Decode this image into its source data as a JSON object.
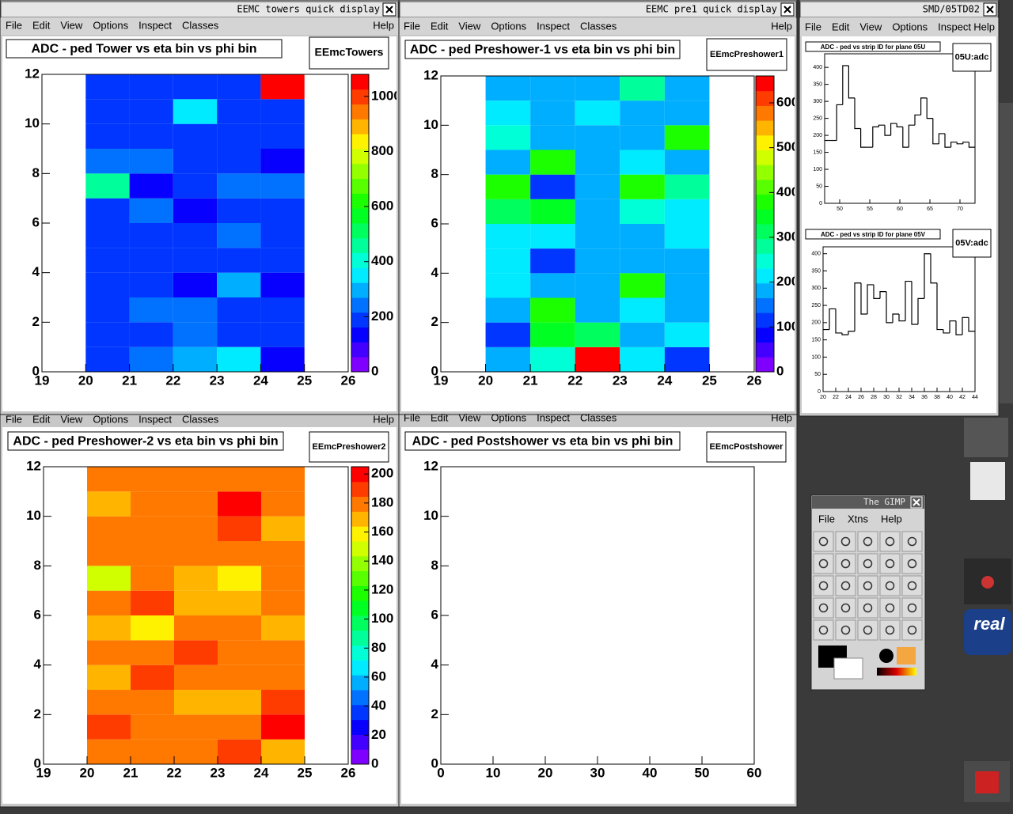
{
  "windows": [
    {
      "title": "EEMC towers quick display",
      "menu": [
        "File",
        "Edit",
        "View",
        "Options",
        "Inspect",
        "Classes",
        "Help"
      ]
    },
    {
      "title": "EEMC pre1 quick display",
      "menu": [
        "File",
        "Edit",
        "View",
        "Options",
        "Inspect",
        "Classes",
        "Help"
      ]
    },
    {
      "title": "SMD/05TD02",
      "menu": [
        "File",
        "Edit",
        "View",
        "Options",
        "Inspect",
        "Help"
      ]
    },
    {
      "menu": [
        "File",
        "Edit",
        "View",
        "Options",
        "Inspect",
        "Classes",
        "Help"
      ]
    },
    {
      "menu": [
        "File",
        "Edit",
        "View",
        "Options",
        "Inspect",
        "Classes",
        "Help"
      ]
    }
  ],
  "gimp": {
    "title": "The GIMP",
    "menu": [
      "File",
      "Xtns",
      "Help"
    ]
  },
  "desktop": {
    "logo": "real"
  },
  "chart_data": [
    {
      "type": "heatmap",
      "title": "ADC - ped Tower vs eta bin vs phi bin",
      "label": "EEmcTowers",
      "xbins": [
        20,
        21,
        22,
        23,
        24,
        25
      ],
      "ybins": [
        0,
        1,
        2,
        3,
        4,
        5,
        6,
        7,
        8,
        9,
        10,
        11,
        12
      ],
      "z": [
        [
          180,
          240,
          270,
          360,
          140
        ],
        [
          180,
          180,
          240,
          180,
          180
        ],
        [
          180,
          240,
          240,
          180,
          180
        ],
        [
          180,
          180,
          140,
          300,
          140
        ],
        [
          180,
          180,
          180,
          180,
          180
        ],
        [
          180,
          180,
          180,
          240,
          180
        ],
        [
          180,
          240,
          140,
          180,
          180
        ],
        [
          475,
          140,
          180,
          240,
          240
        ],
        [
          240,
          240,
          180,
          180,
          140
        ],
        [
          180,
          180,
          180,
          180,
          180
        ],
        [
          180,
          180,
          360,
          180,
          180
        ],
        [
          180,
          180,
          180,
          180,
          1050
        ]
      ],
      "xlim": [
        19,
        26
      ],
      "xticks": [
        19,
        20,
        21,
        22,
        23,
        24,
        25,
        26
      ],
      "ylim": [
        0,
        12
      ],
      "yticks": [
        0,
        2,
        4,
        6,
        8,
        10,
        12
      ],
      "zlim": [
        0,
        1080
      ],
      "zticks": [
        0,
        200,
        400,
        600,
        800,
        1000
      ]
    },
    {
      "type": "heatmap",
      "title": "ADC - ped Preshower-1 vs eta bin vs phi bin",
      "label": "EEmcPreshower1",
      "xbins": [
        20,
        21,
        22,
        23,
        24,
        25
      ],
      "ybins": [
        0,
        1,
        2,
        3,
        4,
        5,
        6,
        7,
        8,
        9,
        10,
        11,
        12
      ],
      "z": [
        [
          170,
          260,
          650,
          220,
          130
        ],
        [
          130,
          330,
          310,
          170,
          220
        ],
        [
          170,
          370,
          170,
          220,
          170
        ],
        [
          220,
          170,
          170,
          370,
          170
        ],
        [
          220,
          130,
          170,
          170,
          170
        ],
        [
          220,
          220,
          170,
          170,
          220
        ],
        [
          310,
          330,
          170,
          260,
          220
        ],
        [
          370,
          130,
          170,
          370,
          290
        ],
        [
          170,
          370,
          170,
          220,
          170
        ],
        [
          260,
          170,
          170,
          170,
          370
        ],
        [
          220,
          170,
          220,
          170,
          170
        ],
        [
          170,
          170,
          170,
          290,
          170
        ]
      ],
      "xlim": [
        19,
        26
      ],
      "xticks": [
        19,
        20,
        21,
        22,
        23,
        24,
        25,
        26
      ],
      "ylim": [
        0,
        12
      ],
      "yticks": [
        0,
        2,
        4,
        6,
        8,
        10,
        12
      ],
      "zlim": [
        0,
        660
      ],
      "zticks": [
        0,
        100,
        200,
        300,
        400,
        500,
        600
      ]
    },
    {
      "type": "heatmap",
      "title": "ADC - ped Preshower-2 vs eta bin vs phi bin",
      "label": "EEmcPreshower2",
      "xbins": [
        20,
        21,
        22,
        23,
        24,
        25
      ],
      "ybins": [
        0,
        1,
        2,
        3,
        4,
        5,
        6,
        7,
        8,
        9,
        10,
        11,
        12
      ],
      "z": [
        [
          175,
          182,
          182,
          193,
          164
        ],
        [
          193,
          182,
          182,
          175,
          196
        ],
        [
          182,
          182,
          164,
          164,
          193
        ],
        [
          164,
          193,
          175,
          175,
          182
        ],
        [
          175,
          175,
          193,
          175,
          182
        ],
        [
          164,
          155,
          182,
          182,
          164
        ],
        [
          182,
          193,
          164,
          164,
          175
        ],
        [
          152,
          182,
          164,
          155,
          182
        ],
        [
          175,
          175,
          175,
          182,
          182
        ],
        [
          182,
          175,
          175,
          193,
          164
        ],
        [
          164,
          175,
          175,
          196,
          175
        ],
        [
          175,
          182,
          175,
          182,
          182
        ]
      ],
      "xlim": [
        19,
        26
      ],
      "xticks": [
        19,
        20,
        21,
        22,
        23,
        24,
        25,
        26
      ],
      "ylim": [
        0,
        12
      ],
      "yticks": [
        0,
        2,
        4,
        6,
        8,
        10,
        12
      ],
      "zlim": [
        0,
        205
      ],
      "zticks": [
        0,
        20,
        40,
        60,
        80,
        100,
        120,
        140,
        160,
        180,
        200
      ]
    },
    {
      "type": "heatmap",
      "title": "ADC - ped Postshower vs eta bin vs phi bin",
      "label": "EEmcPostshower",
      "xlim": [
        0,
        60
      ],
      "xticks": [
        0,
        10,
        20,
        30,
        40,
        50,
        60
      ],
      "ylim": [
        0,
        12
      ],
      "yticks": [
        0,
        2,
        4,
        6,
        8,
        10,
        12
      ]
    },
    {
      "type": "histogram",
      "title": "ADC - ped vs strip ID for plane 05U",
      "label": "05U:adc",
      "bins": [
        47.5,
        48.5,
        49.5,
        50.5,
        51.5,
        52.5,
        53.5,
        54.5,
        55.5,
        56.5,
        57.5,
        58.5,
        59.5,
        60.5,
        61.5,
        62.5,
        63.5,
        64.5,
        65.5,
        66.5,
        67.5,
        68.5,
        69.5,
        70.5,
        71.5,
        72.5
      ],
      "values": [
        185,
        185,
        290,
        405,
        310,
        220,
        165,
        165,
        225,
        230,
        200,
        235,
        225,
        165,
        230,
        260,
        310,
        250,
        175,
        205,
        165,
        180,
        175,
        180,
        165
      ],
      "xlim": [
        47.5,
        72.5
      ],
      "xticks": [
        50,
        55,
        60,
        65,
        70
      ],
      "ylim": [
        0,
        440
      ],
      "yticks": [
        0,
        50,
        100,
        150,
        200,
        250,
        300,
        350,
        400
      ]
    },
    {
      "type": "histogram",
      "title": "ADC - ped vs strip ID for plane 05V",
      "label": "05V:adc",
      "bins": [
        20,
        21,
        22,
        23,
        24,
        25,
        26,
        27,
        28,
        29,
        30,
        31,
        32,
        33,
        34,
        35,
        36,
        37,
        38,
        39,
        40,
        41,
        42,
        43,
        44
      ],
      "values": [
        180,
        240,
        170,
        165,
        175,
        315,
        225,
        310,
        270,
        290,
        200,
        225,
        205,
        320,
        195,
        270,
        400,
        315,
        180,
        170,
        205,
        165,
        215,
        175
      ],
      "xlim": [
        20,
        44
      ],
      "xticks": [
        20,
        22,
        24,
        26,
        28,
        30,
        32,
        34,
        36,
        38,
        40,
        42,
        44
      ],
      "ylim": [
        0,
        420
      ],
      "yticks": [
        0,
        50,
        100,
        150,
        200,
        250,
        300,
        350,
        400
      ]
    }
  ]
}
